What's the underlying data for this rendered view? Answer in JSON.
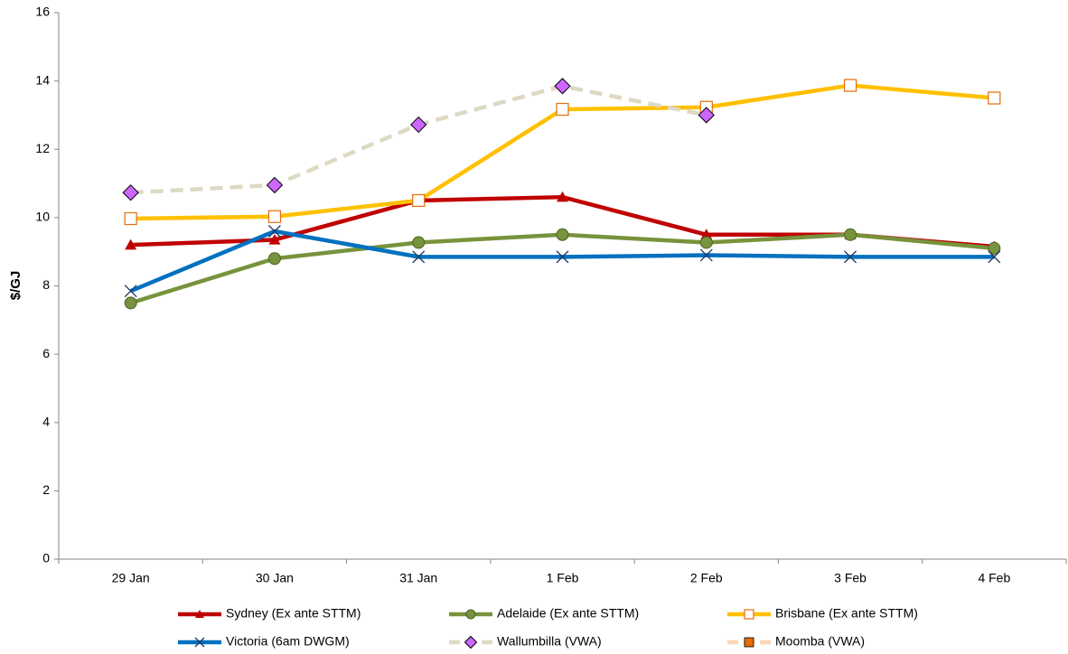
{
  "chart_data": {
    "type": "line",
    "y_label": "$/GJ",
    "categories": [
      "29 Jan",
      "30 Jan",
      "31 Jan",
      "1 Feb",
      "2 Feb",
      "3 Feb",
      "4 Feb"
    ],
    "ylim": [
      0,
      16
    ],
    "yticks": [
      0,
      2,
      4,
      6,
      8,
      10,
      12,
      14,
      16
    ],
    "grid": false,
    "legend": "bottom",
    "series": [
      {
        "name": "Sydney (Ex ante STTM)",
        "color": "#c00000",
        "marker": "triangle",
        "marker_color": "#c00000",
        "values": [
          9.2,
          9.35,
          10.5,
          10.6,
          9.5,
          9.5,
          9.15
        ]
      },
      {
        "name": "Adelaide (Ex ante STTM)",
        "color": "#77933c",
        "marker": "circle",
        "marker_color": "#77933c",
        "values": [
          7.5,
          8.8,
          9.27,
          9.5,
          9.27,
          9.5,
          9.1
        ]
      },
      {
        "name": "Brisbane (Ex ante STTM)",
        "color": "#ffc000",
        "marker": "open-square",
        "marker_color": "#e46c0a",
        "values": [
          9.97,
          10.03,
          10.5,
          13.17,
          13.23,
          13.87,
          13.5
        ]
      },
      {
        "name": "Victoria (6am DWGM)",
        "color": "#0070c0",
        "marker": "x",
        "marker_color": "#1f3864",
        "values": [
          7.85,
          9.6,
          8.85,
          8.85,
          8.9,
          8.85,
          8.85
        ]
      },
      {
        "name": "Wallumbilla (VWA)",
        "color": "#ddd9c3",
        "dashed": true,
        "marker": "diamond",
        "marker_color": "#cc66ff",
        "values": [
          10.73,
          10.95,
          12.72,
          13.85,
          13.0,
          null,
          null
        ]
      },
      {
        "name": "Moomba (VWA)",
        "color": "#fbd5b5",
        "dashed": true,
        "marker": "square",
        "marker_color": "#e46c0a",
        "values": [
          null,
          null,
          null,
          null,
          null,
          null,
          null
        ]
      }
    ]
  }
}
